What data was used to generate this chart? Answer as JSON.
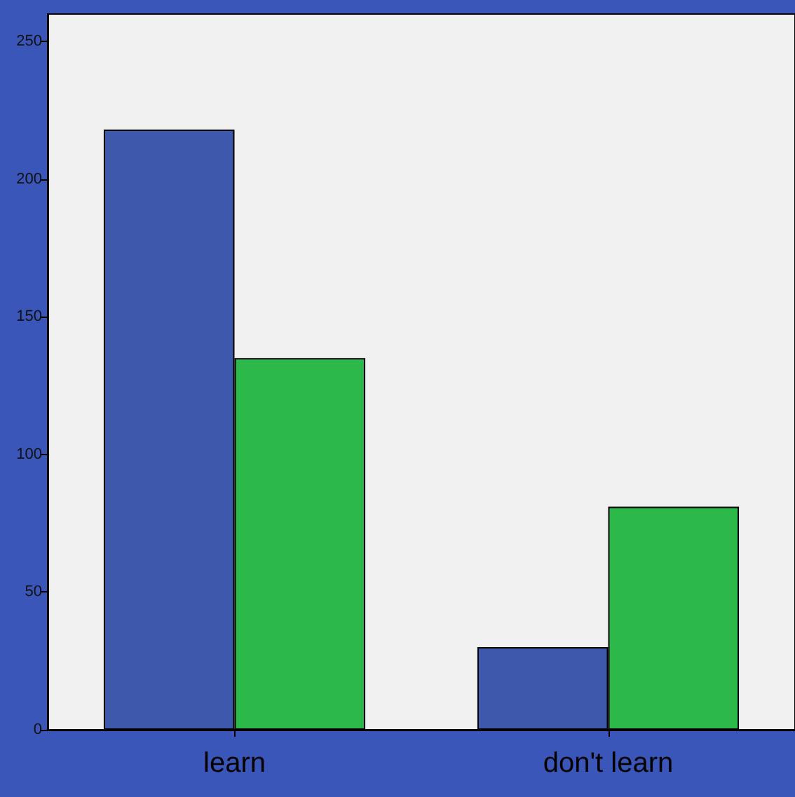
{
  "chart_data": {
    "type": "bar",
    "categories": [
      "learn",
      "don't learn"
    ],
    "series": [
      {
        "color": "#3e58ac",
        "values": [
          218,
          30
        ]
      },
      {
        "color": "#2db84a",
        "values": [
          135,
          81
        ]
      }
    ],
    "ylim": [
      0,
      260
    ],
    "yticks": [
      0,
      50,
      100,
      150,
      200,
      250
    ],
    "grid": false
  }
}
